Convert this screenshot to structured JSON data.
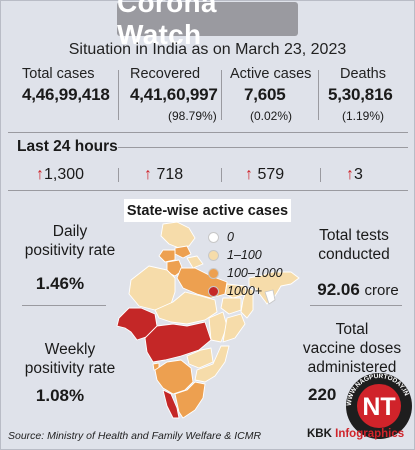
{
  "header": {
    "title": "Corona Watch",
    "subtitle": "Situation in India as on March 23, 2023"
  },
  "totals": [
    {
      "label": "Total cases",
      "value": "4,46,99,418",
      "pct": ""
    },
    {
      "label": "Recovered",
      "value": "4,41,60,997",
      "pct": "(98.79%)"
    },
    {
      "label": "Active cases",
      "value": "7,605",
      "pct": "(0.02%)"
    },
    {
      "label": "Deaths",
      "value": "5,30,816",
      "pct": "(1.19%)"
    }
  ],
  "last24": {
    "label": "Last 24 hours",
    "values": [
      "1,300",
      "718",
      "579",
      "3"
    ]
  },
  "map": {
    "title": "State-wise active cases",
    "legend": [
      {
        "label": "0",
        "color": "#ffffff"
      },
      {
        "label": "1–100",
        "color": "#f6dcaa"
      },
      {
        "label": "100–1000",
        "color": "#eda050"
      },
      {
        "label": "1000+",
        "color": "#c42727"
      }
    ]
  },
  "left_panel": {
    "daily_label_1": "Daily",
    "daily_label_2": "positivity rate",
    "daily_value": "1.46%",
    "weekly_label_1": "Weekly",
    "weekly_label_2": "positivity rate",
    "weekly_value": "1.08%"
  },
  "right_panel": {
    "tests_label_1": "Total tests",
    "tests_label_2": "conducted",
    "tests_value": "92.06",
    "tests_unit": "crore",
    "vaccine_label_1": "Total",
    "vaccine_label_2": "vaccine doses",
    "vaccine_label_3": "administered",
    "vaccine_value": "220"
  },
  "footer": {
    "source": "Source: Ministry of Health and Family Welfare & ICMR",
    "credit_prefix": "KBK ",
    "credit_brand": "Infographics"
  },
  "watermark": {
    "logo_text": "NT",
    "ring_text": "WWW.NAGPURTODAY.IN"
  },
  "colors": {
    "accent_red": "#d0232a",
    "title_bar": "#9a9aa0",
    "background": "#dfe2ea"
  }
}
